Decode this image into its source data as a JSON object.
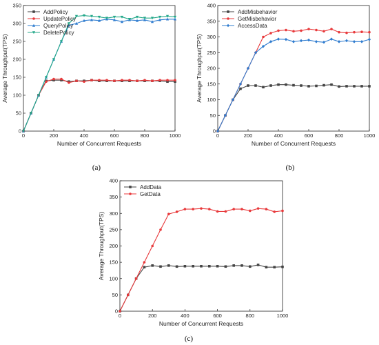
{
  "figure": {
    "panel_labels": [
      "(a)",
      "(b)",
      "(c)"
    ]
  },
  "chart_data": [
    {
      "type": "line",
      "panel": "(a)",
      "xlabel": "Number of Concurrent Requests",
      "ylabel": "Average Throughput(TPS)",
      "xlim": [
        0,
        1000
      ],
      "ylim": [
        0,
        350
      ],
      "xticks": [
        0,
        200,
        400,
        600,
        800,
        1000
      ],
      "yticks": [
        0,
        50,
        100,
        150,
        200,
        250,
        300,
        350
      ],
      "legend": "top-left",
      "x": [
        0,
        50,
        100,
        150,
        200,
        250,
        300,
        350,
        400,
        450,
        500,
        550,
        600,
        650,
        700,
        750,
        800,
        850,
        900,
        950,
        1000
      ],
      "series": [
        {
          "name": "AddPolicy",
          "color": "#444444",
          "marker": "square",
          "values": [
            0,
            50,
            100,
            140,
            142,
            142,
            138,
            140,
            140,
            142,
            140,
            140,
            140,
            140,
            140,
            140,
            140,
            140,
            140,
            138,
            138
          ]
        },
        {
          "name": "UpdatePolicy",
          "color": "#e8393b",
          "marker": "circle",
          "values": [
            0,
            50,
            100,
            138,
            145,
            145,
            135,
            140,
            138,
            142,
            142,
            142,
            140,
            142,
            142,
            140,
            142,
            140,
            142,
            142,
            142
          ]
        },
        {
          "name": "QueryPolicy",
          "color": "#2f7ccf",
          "marker": "triangle",
          "values": [
            0,
            50,
            100,
            150,
            200,
            250,
            295,
            300,
            308,
            310,
            308,
            312,
            310,
            305,
            310,
            308,
            310,
            305,
            310,
            312,
            312
          ]
        },
        {
          "name": "DeletePolicy",
          "color": "#24a88a",
          "marker": "triangle-down",
          "values": [
            0,
            50,
            100,
            150,
            200,
            250,
            300,
            320,
            322,
            320,
            318,
            315,
            318,
            318,
            312,
            318,
            315,
            315,
            318,
            320,
            318
          ]
        }
      ]
    },
    {
      "type": "line",
      "panel": "(b)",
      "xlabel": "Number of Concurrent Requests",
      "ylabel": "Average Throughput(TPS)",
      "xlim": [
        0,
        1000
      ],
      "ylim": [
        0,
        400
      ],
      "xticks": [
        0,
        200,
        400,
        600,
        800,
        1000
      ],
      "yticks": [
        0,
        50,
        100,
        150,
        200,
        250,
        300,
        350,
        400
      ],
      "legend": "top-left",
      "x": [
        0,
        50,
        100,
        150,
        200,
        250,
        300,
        350,
        400,
        450,
        500,
        550,
        600,
        650,
        700,
        750,
        800,
        850,
        900,
        950,
        1000
      ],
      "series": [
        {
          "name": "AddMisbehavior",
          "color": "#444444",
          "marker": "square",
          "values": [
            0,
            50,
            100,
            135,
            145,
            145,
            140,
            145,
            148,
            148,
            146,
            145,
            143,
            144,
            146,
            148,
            142,
            143,
            143,
            143,
            143
          ]
        },
        {
          "name": "GetMisbehavior",
          "color": "#e8393b",
          "marker": "circle",
          "values": [
            0,
            50,
            100,
            150,
            200,
            250,
            300,
            312,
            320,
            322,
            318,
            320,
            325,
            322,
            318,
            325,
            315,
            313,
            315,
            316,
            315
          ]
        },
        {
          "name": "AccessData",
          "color": "#2f7ccf",
          "marker": "diamond",
          "values": [
            0,
            50,
            100,
            150,
            200,
            250,
            270,
            285,
            293,
            292,
            285,
            288,
            290,
            285,
            283,
            293,
            285,
            288,
            285,
            285,
            292
          ]
        }
      ]
    },
    {
      "type": "line",
      "panel": "(c)",
      "xlabel": "Number of Concurrent Requests",
      "ylabel": "Average Throughput(TPS)",
      "xlim": [
        0,
        1000
      ],
      "ylim": [
        0,
        400
      ],
      "xticks": [
        0,
        200,
        400,
        600,
        800,
        1000
      ],
      "yticks": [
        0,
        50,
        100,
        150,
        200,
        250,
        300,
        350,
        400
      ],
      "legend": "top-left",
      "x": [
        0,
        50,
        100,
        150,
        200,
        250,
        300,
        350,
        400,
        450,
        500,
        550,
        600,
        650,
        700,
        750,
        800,
        850,
        900,
        950,
        1000
      ],
      "series": [
        {
          "name": "AddData",
          "color": "#444444",
          "marker": "square",
          "values": [
            0,
            50,
            100,
            135,
            140,
            137,
            140,
            137,
            138,
            138,
            138,
            138,
            138,
            137,
            140,
            140,
            137,
            142,
            135,
            135,
            136
          ]
        },
        {
          "name": "GetData",
          "color": "#e8393b",
          "marker": "circle",
          "values": [
            0,
            50,
            100,
            150,
            200,
            250,
            298,
            305,
            313,
            313,
            315,
            313,
            306,
            306,
            313,
            313,
            308,
            315,
            313,
            305,
            308
          ]
        }
      ]
    }
  ]
}
